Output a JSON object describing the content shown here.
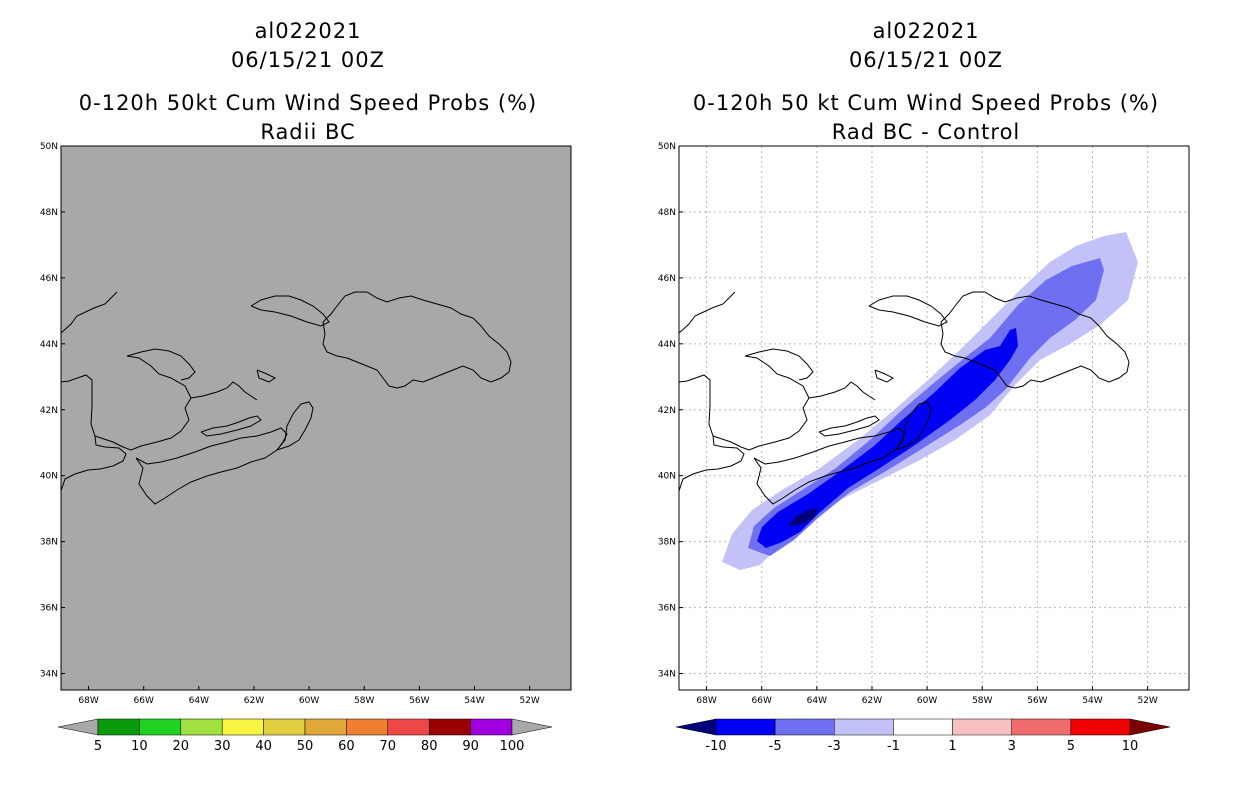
{
  "left_panel": {
    "storm_id": "al022021",
    "datetime": "06/15/21 00Z",
    "title": "0-120h 50kt Cum Wind Speed Probs (%)",
    "subtitle": "Radii BC",
    "colorbar": {
      "labels": [
        "5",
        "10",
        "20",
        "30",
        "40",
        "50",
        "60",
        "70",
        "80",
        "90",
        "100"
      ],
      "colors": [
        "#a8a8a8",
        "#0a9a0a",
        "#1fd21f",
        "#a0e040",
        "#f6f640",
        "#e0d040",
        "#e0a838",
        "#ef8030",
        "#f04848",
        "#990000",
        "#a000e0",
        "#a8a8a8"
      ]
    }
  },
  "right_panel": {
    "storm_id": "al022021",
    "datetime": "06/15/21 00Z",
    "title": "0-120h 50 kt Cum Wind Speed Probs (%)",
    "subtitle": "Rad BC - Control",
    "colorbar": {
      "labels": [
        "-10",
        "-5",
        "-3",
        "-1",
        "1",
        "3",
        "5",
        "10"
      ],
      "colors": [
        "#00007a",
        "#0000f2",
        "#6f6ff2",
        "#c2c2f8",
        "#ffffff",
        "#f8c0c0",
        "#f06c6c",
        "#f00000",
        "#7a0000"
      ]
    }
  },
  "map": {
    "lat_labels": [
      "50N",
      "48N",
      "46N",
      "44N",
      "42N",
      "40N",
      "38N",
      "36N",
      "34N"
    ],
    "lon_labels": [
      "68W",
      "66W",
      "64W",
      "62W",
      "60W",
      "58W",
      "56W",
      "54W",
      "52W"
    ],
    "domain": {
      "lon_min": -69,
      "lon_max": -50.5,
      "lat_min": 33.5,
      "lat_max": 50
    }
  },
  "colors": {
    "left_fill": "#a8a8a8",
    "diff_light": "#c2c2f8",
    "diff_medium": "#6f6ff2",
    "diff_strong": "#0000f2",
    "diff_extreme": "#00007a",
    "grid": "#b8b8b8",
    "coast": "#000000"
  }
}
